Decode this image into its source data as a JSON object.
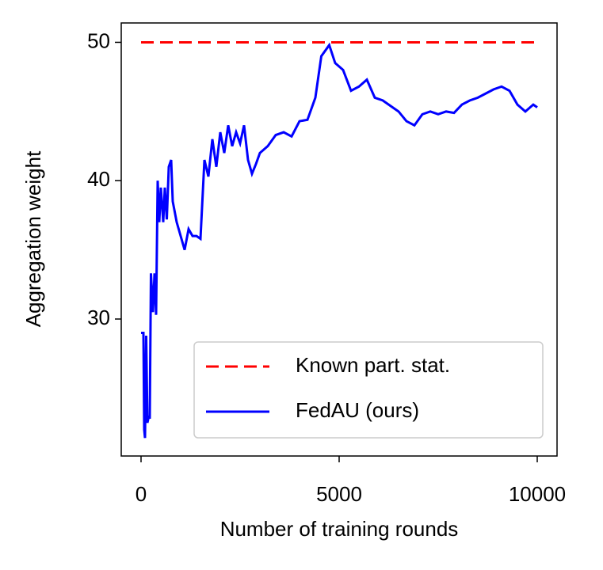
{
  "chart_data": {
    "type": "line",
    "xlabel": "Number of training rounds",
    "ylabel": "Aggregation weight",
    "xlim": [
      -500,
      10500
    ],
    "ylim": [
      20.1,
      51.4
    ],
    "xticks": [
      0,
      5000,
      10000
    ],
    "yticks": [
      30,
      40,
      50
    ],
    "legend": "lower right",
    "series": [
      {
        "name": "Known part. stat.",
        "color": "#ff0000",
        "linestyle": "dashed",
        "x": [
          0,
          10000
        ],
        "values": [
          50,
          50
        ]
      },
      {
        "name": "FedAU (ours)",
        "color": "#0000ff",
        "linestyle": "solid",
        "x": [
          0,
          60,
          80,
          100,
          130,
          160,
          200,
          220,
          250,
          300,
          340,
          380,
          420,
          460,
          500,
          560,
          600,
          650,
          700,
          760,
          800,
          900,
          1000,
          1100,
          1200,
          1300,
          1400,
          1500,
          1600,
          1700,
          1800,
          1900,
          2000,
          2100,
          2200,
          2300,
          2400,
          2500,
          2600,
          2700,
          2800,
          2900,
          3000,
          3200,
          3400,
          3600,
          3800,
          4000,
          4200,
          4400,
          4550,
          4750,
          4900,
          5100,
          5300,
          5500,
          5700,
          5900,
          6100,
          6300,
          6500,
          6700,
          6900,
          7100,
          7300,
          7500,
          7700,
          7900,
          8100,
          8300,
          8500,
          8700,
          8900,
          9100,
          9300,
          9500,
          9700,
          9900,
          10000
        ],
        "values": [
          29,
          29,
          22,
          21.4,
          28.8,
          22.5,
          23,
          22.8,
          33.3,
          30.5,
          33.3,
          30.3,
          40,
          37,
          39.5,
          37,
          39.5,
          37.2,
          41,
          41.5,
          38.5,
          37,
          36,
          35,
          36.5,
          36,
          36,
          35.8,
          41.5,
          40.3,
          43,
          41,
          43.5,
          42,
          44,
          42.5,
          43.5,
          42.7,
          44,
          41.5,
          40.5,
          41.2,
          42,
          42.5,
          43.3,
          43.5,
          43.2,
          44.3,
          44.4,
          46,
          49,
          49.8,
          48.5,
          48,
          46.5,
          46.8,
          47.3,
          46,
          45.8,
          45.4,
          45,
          44.3,
          44,
          44.8,
          45,
          44.8,
          45,
          44.9,
          45.5,
          45.8,
          46,
          46.3,
          46.6,
          46.8,
          46.5,
          45.5,
          45,
          45.5,
          45.3
        ]
      }
    ]
  }
}
